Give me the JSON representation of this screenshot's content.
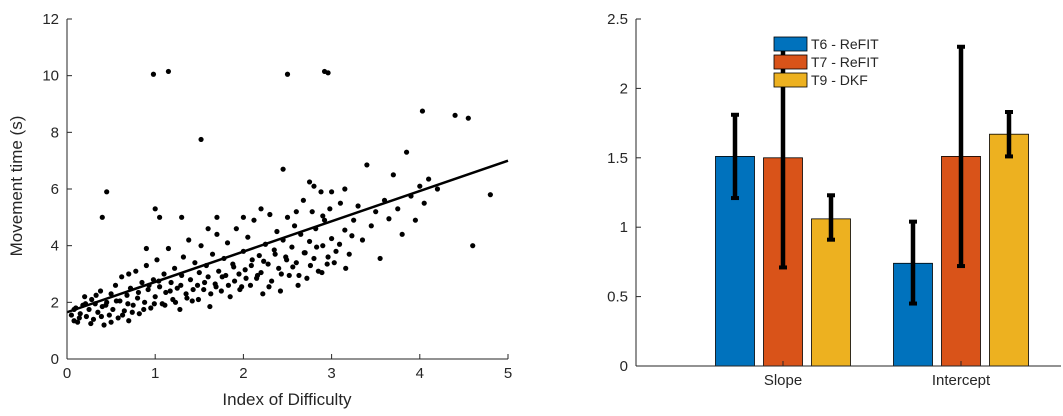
{
  "chart_data": [
    {
      "type": "scatter",
      "title": "",
      "xlabel": "Index of Difficulty",
      "ylabel": "Movement time (s)",
      "xlim": [
        0,
        5
      ],
      "ylim": [
        0,
        12
      ],
      "xticks": [
        "0",
        "1",
        "2",
        "3",
        "4",
        "5"
      ],
      "yticks": [
        "0",
        "2",
        "4",
        "6",
        "8",
        "10",
        "12"
      ],
      "grid": false,
      "point_color": "#000000",
      "fit_line": {
        "x": [
          0,
          5
        ],
        "y": [
          1.65,
          7.0
        ],
        "color": "#000000"
      },
      "points": [
        [
          0.05,
          1.55
        ],
        [
          0.08,
          1.35
        ],
        [
          0.1,
          1.8
        ],
        [
          0.12,
          1.3
        ],
        [
          0.15,
          1.6
        ],
        [
          0.18,
          1.9
        ],
        [
          0.2,
          2.2
        ],
        [
          0.22,
          1.5
        ],
        [
          0.25,
          1.75
        ],
        [
          0.28,
          2.1
        ],
        [
          0.3,
          1.4
        ],
        [
          0.32,
          1.95
        ],
        [
          0.35,
          1.65
        ],
        [
          0.38,
          2.4
        ],
        [
          0.4,
          1.85
        ],
        [
          0.42,
          1.2
        ],
        [
          0.45,
          2.0
        ],
        [
          0.48,
          1.55
        ],
        [
          0.5,
          2.3
        ],
        [
          0.52,
          1.75
        ],
        [
          0.55,
          2.6
        ],
        [
          0.58,
          1.45
        ],
        [
          0.6,
          2.05
        ],
        [
          0.62,
          2.9
        ],
        [
          0.65,
          1.7
        ],
        [
          0.68,
          2.25
        ],
        [
          0.7,
          1.35
        ],
        [
          0.72,
          2.5
        ],
        [
          0.75,
          1.9
        ],
        [
          0.78,
          3.1
        ],
        [
          0.8,
          2.15
        ],
        [
          0.82,
          1.6
        ],
        [
          0.85,
          2.7
        ],
        [
          0.88,
          2.0
        ],
        [
          0.9,
          3.3
        ],
        [
          0.92,
          2.45
        ],
        [
          0.95,
          1.8
        ],
        [
          0.98,
          2.8
        ],
        [
          1.0,
          2.2
        ],
        [
          1.02,
          3.5
        ],
        [
          1.05,
          2.55
        ],
        [
          1.08,
          1.95
        ],
        [
          1.1,
          3.0
        ],
        [
          1.12,
          2.35
        ],
        [
          1.15,
          3.9
        ],
        [
          1.18,
          2.7
        ],
        [
          1.2,
          2.1
        ],
        [
          1.22,
          3.2
        ],
        [
          1.25,
          2.5
        ],
        [
          1.28,
          1.75
        ],
        [
          1.3,
          2.95
        ],
        [
          1.32,
          3.6
        ],
        [
          1.35,
          2.3
        ],
        [
          1.38,
          4.2
        ],
        [
          1.4,
          2.8
        ],
        [
          1.42,
          2.05
        ],
        [
          1.45,
          3.4
        ],
        [
          1.48,
          2.6
        ],
        [
          1.5,
          3.05
        ],
        [
          1.52,
          4.0
        ],
        [
          1.55,
          2.45
        ],
        [
          1.58,
          3.3
        ],
        [
          1.6,
          2.9
        ],
        [
          1.62,
          1.85
        ],
        [
          1.65,
          3.7
        ],
        [
          1.68,
          2.65
        ],
        [
          1.7,
          4.4
        ],
        [
          1.72,
          3.1
        ],
        [
          1.75,
          2.4
        ],
        [
          1.78,
          3.55
        ],
        [
          1.8,
          2.95
        ],
        [
          1.82,
          4.1
        ],
        [
          1.85,
          2.2
        ],
        [
          1.88,
          3.35
        ],
        [
          1.9,
          2.75
        ],
        [
          1.92,
          4.6
        ],
        [
          1.95,
          3.0
        ],
        [
          1.98,
          2.55
        ],
        [
          2.0,
          3.8
        ],
        [
          2.02,
          3.15
        ],
        [
          2.05,
          4.3
        ],
        [
          2.08,
          2.6
        ],
        [
          2.1,
          3.5
        ],
        [
          2.12,
          4.9
        ],
        [
          2.15,
          2.85
        ],
        [
          2.18,
          3.65
        ],
        [
          2.2,
          3.05
        ],
        [
          2.22,
          2.3
        ],
        [
          2.25,
          4.05
        ],
        [
          2.28,
          3.35
        ],
        [
          2.3,
          5.1
        ],
        [
          2.32,
          2.75
        ],
        [
          2.35,
          3.85
        ],
        [
          2.38,
          4.5
        ],
        [
          2.4,
          3.2
        ],
        [
          2.42,
          2.4
        ],
        [
          2.45,
          4.2
        ],
        [
          2.48,
          3.6
        ],
        [
          2.5,
          5.0
        ],
        [
          2.52,
          2.95
        ],
        [
          2.55,
          3.95
        ],
        [
          2.58,
          4.7
        ],
        [
          2.6,
          3.4
        ],
        [
          2.62,
          2.6
        ],
        [
          2.65,
          4.4
        ],
        [
          2.68,
          5.6
        ],
        [
          2.7,
          3.75
        ],
        [
          2.72,
          2.85
        ],
        [
          2.75,
          4.15
        ],
        [
          2.78,
          5.2
        ],
        [
          2.8,
          3.55
        ],
        [
          2.82,
          4.6
        ],
        [
          2.85,
          3.1
        ],
        [
          2.88,
          5.9
        ],
        [
          2.9,
          4.0
        ],
        [
          2.92,
          4.9
        ],
        [
          2.95,
          3.35
        ],
        [
          2.98,
          5.3
        ],
        [
          3.0,
          4.25
        ],
        [
          3.05,
          3.8
        ],
        [
          3.1,
          5.5
        ],
        [
          3.15,
          4.55
        ],
        [
          3.2,
          3.7
        ],
        [
          3.25,
          4.9
        ],
        [
          3.3,
          5.4
        ],
        [
          3.35,
          4.2
        ],
        [
          3.4,
          6.85
        ],
        [
          3.45,
          4.7
        ],
        [
          3.5,
          5.2
        ],
        [
          3.55,
          3.55
        ],
        [
          3.6,
          5.6
        ],
        [
          3.65,
          4.95
        ],
        [
          3.7,
          6.5
        ],
        [
          3.75,
          5.3
        ],
        [
          3.8,
          4.4
        ],
        [
          3.85,
          7.3
        ],
        [
          3.9,
          5.75
        ],
        [
          3.95,
          4.9
        ],
        [
          4.0,
          6.1
        ],
        [
          4.05,
          5.5
        ],
        [
          4.1,
          6.35
        ],
        [
          4.2,
          6.0
        ],
        [
          4.4,
          8.6
        ],
        [
          4.55,
          8.5
        ],
        [
          4.6,
          4.0
        ],
        [
          4.8,
          5.8
        ],
        [
          0.08,
          1.75
        ],
        [
          0.14,
          1.45
        ],
        [
          0.21,
          1.95
        ],
        [
          0.27,
          1.25
        ],
        [
          0.33,
          2.25
        ],
        [
          0.39,
          1.5
        ],
        [
          0.44,
          1.9
        ],
        [
          0.5,
          1.3
        ],
        [
          0.56,
          2.05
        ],
        [
          0.63,
          1.55
        ],
        [
          0.69,
          1.95
        ],
        [
          0.74,
          1.65
        ],
        [
          0.81,
          2.35
        ],
        [
          0.87,
          1.75
        ],
        [
          0.93,
          2.6
        ],
        [
          0.99,
          1.95
        ],
        [
          1.04,
          2.75
        ],
        [
          1.11,
          1.9
        ],
        [
          1.17,
          2.4
        ],
        [
          1.23,
          2.0
        ],
        [
          1.29,
          2.6
        ],
        [
          1.36,
          2.15
        ],
        [
          1.43,
          2.45
        ],
        [
          1.49,
          2.1
        ],
        [
          1.56,
          2.7
        ],
        [
          1.63,
          2.3
        ],
        [
          1.69,
          2.55
        ],
        [
          1.76,
          2.9
        ],
        [
          1.83,
          2.6
        ],
        [
          1.89,
          3.25
        ],
        [
          1.96,
          2.45
        ],
        [
          2.03,
          2.85
        ],
        [
          2.09,
          3.3
        ],
        [
          2.16,
          2.95
        ],
        [
          2.23,
          3.45
        ],
        [
          2.29,
          2.55
        ],
        [
          2.36,
          3.7
        ],
        [
          2.43,
          3.0
        ],
        [
          2.49,
          3.5
        ],
        [
          2.56,
          3.25
        ],
        [
          2.63,
          2.95
        ],
        [
          2.69,
          3.75
        ],
        [
          2.76,
          3.3
        ],
        [
          2.83,
          3.95
        ],
        [
          2.89,
          3.05
        ],
        [
          2.96,
          3.6
        ],
        [
          3.03,
          3.4
        ],
        [
          3.09,
          4.05
        ],
        [
          3.16,
          3.2
        ],
        [
          3.23,
          4.35
        ],
        [
          0.4,
          5.0
        ],
        [
          0.45,
          5.9
        ],
        [
          1.0,
          5.3
        ],
        [
          1.05,
          5.0
        ],
        [
          1.3,
          5.0
        ],
        [
          1.7,
          5.0
        ],
        [
          2.0,
          5.0
        ],
        [
          2.2,
          5.3
        ],
        [
          2.45,
          6.7
        ],
        [
          2.6,
          5.2
        ],
        [
          2.75,
          6.25
        ],
        [
          2.8,
          6.1
        ],
        [
          2.9,
          5.05
        ],
        [
          3.0,
          5.9
        ],
        [
          3.15,
          6.0
        ],
        [
          1.52,
          7.75
        ],
        [
          0.98,
          10.05
        ],
        [
          1.15,
          10.15
        ],
        [
          2.5,
          10.05
        ],
        [
          2.92,
          10.15
        ],
        [
          2.96,
          10.1
        ],
        [
          4.03,
          8.75
        ],
        [
          1.6,
          4.6
        ],
        [
          0.7,
          3.0
        ],
        [
          0.9,
          3.9
        ]
      ]
    },
    {
      "type": "bar",
      "title": "",
      "xlabel": "",
      "ylabel": "",
      "categories": [
        "Slope",
        "Intercept"
      ],
      "ylim": [
        0,
        2.5
      ],
      "yticks": [
        "0",
        "0.5",
        "1",
        "1.5",
        "2",
        "2.5"
      ],
      "grid": false,
      "legend_position": "top-center",
      "series": [
        {
          "name": "T6 - ReFIT",
          "color": "#0072BD",
          "values": [
            1.51,
            0.74
          ],
          "err_low": [
            1.21,
            0.45
          ],
          "err_high": [
            1.81,
            1.04
          ]
        },
        {
          "name": "T7 - ReFIT",
          "color": "#D95319",
          "values": [
            1.5,
            1.51
          ],
          "err_low": [
            0.71,
            0.72
          ],
          "err_high": [
            2.29,
            2.3
          ]
        },
        {
          "name": "T9 - DKF",
          "color": "#EDB120",
          "values": [
            1.06,
            1.67
          ],
          "err_low": [
            0.91,
            1.51
          ],
          "err_high": [
            1.23,
            1.83
          ]
        }
      ]
    }
  ]
}
